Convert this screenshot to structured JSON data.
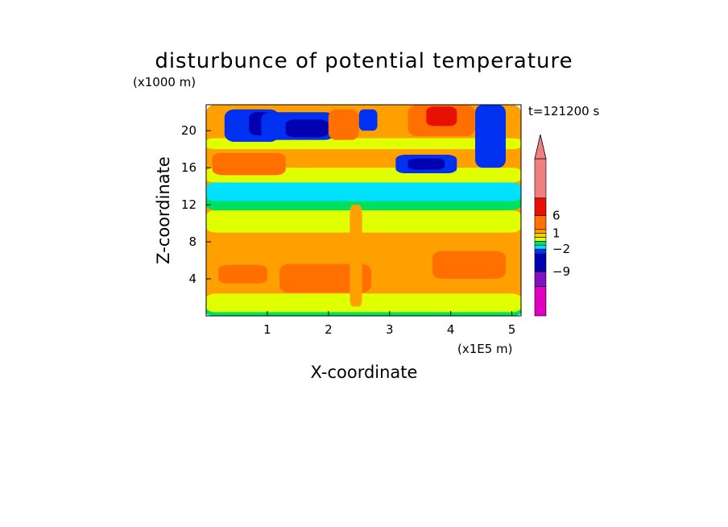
{
  "chart_data": {
    "type": "heatmap",
    "title": "disturbunce of potential temperature",
    "time_label": "t=121200 s",
    "xlabel": "X-coordinate",
    "ylabel": "Z-coordinate",
    "x_unit": "(x1E5 m)",
    "y_unit": "(x1000 m)",
    "x_ticks": [
      "1",
      "2",
      "3",
      "4",
      "5"
    ],
    "y_ticks": [
      "4",
      "8",
      "12",
      "16",
      "20"
    ],
    "xlim": [
      0,
      5.15
    ],
    "ylim": [
      0,
      22.8
    ],
    "colorbar": {
      "colors": [
        "#e000c0",
        "#8010c0",
        "#0000b0",
        "#0030f0",
        "#00e0ff",
        "#00e060",
        "#e0ff00",
        "#ffd000",
        "#ffa000",
        "#ff7000",
        "#e81000",
        "#f08080"
      ],
      "labels": [
        "-9",
        "-2",
        "1",
        "6"
      ]
    },
    "regions": [
      {
        "level": 8,
        "x": [
          0.0,
          5.15
        ],
        "z": [
          0,
          22.8
        ]
      },
      {
        "level": 5,
        "x": [
          0.0,
          5.15
        ],
        "z": [
          0,
          1.2
        ]
      },
      {
        "level": 6,
        "x": [
          0.0,
          5.15
        ],
        "z": [
          9.0,
          11.4
        ]
      },
      {
        "level": 6,
        "x": [
          0.0,
          5.15
        ],
        "z": [
          0.4,
          2.4
        ]
      },
      {
        "level": 9,
        "x": [
          1.2,
          2.7
        ],
        "z": [
          2.5,
          5.6
        ]
      },
      {
        "level": 9,
        "x": [
          3.7,
          4.9
        ],
        "z": [
          4.0,
          7.0
        ]
      },
      {
        "level": 9,
        "x": [
          0.2,
          1.0
        ],
        "z": [
          3.5,
          5.5
        ]
      },
      {
        "level": 5,
        "x": [
          0.0,
          5.15
        ],
        "z": [
          11.4,
          13.6
        ]
      },
      {
        "level": 4,
        "x": [
          0.0,
          5.15
        ],
        "z": [
          12.4,
          14.4
        ]
      },
      {
        "level": 6,
        "x": [
          0.0,
          5.15
        ],
        "z": [
          14.4,
          16.0
        ]
      },
      {
        "level": 8,
        "x": [
          0.0,
          5.15
        ],
        "z": [
          16.0,
          18.0
        ]
      },
      {
        "level": 9,
        "x": [
          0.1,
          1.3
        ],
        "z": [
          15.2,
          17.6
        ]
      },
      {
        "level": 6,
        "x": [
          0.0,
          5.15
        ],
        "z": [
          18.0,
          19.2
        ]
      },
      {
        "level": 8,
        "x": [
          0.0,
          5.15
        ],
        "z": [
          19.2,
          22.8
        ]
      },
      {
        "level": 3,
        "x": [
          0.3,
          1.2
        ],
        "z": [
          18.8,
          22.3
        ]
      },
      {
        "level": 2,
        "x": [
          0.7,
          1.2
        ],
        "z": [
          19.5,
          22.0
        ]
      },
      {
        "level": 3,
        "x": [
          0.9,
          2.1
        ],
        "z": [
          19.0,
          22.0
        ]
      },
      {
        "level": 2,
        "x": [
          1.3,
          2.0
        ],
        "z": [
          19.3,
          21.2
        ]
      },
      {
        "level": 9,
        "x": [
          2.0,
          2.5
        ],
        "z": [
          19.0,
          22.3
        ]
      },
      {
        "level": 3,
        "x": [
          2.5,
          2.8
        ],
        "z": [
          20.0,
          22.3
        ]
      },
      {
        "level": 9,
        "x": [
          3.3,
          4.4
        ],
        "z": [
          19.4,
          22.8
        ]
      },
      {
        "level": 10,
        "x": [
          3.6,
          4.1
        ],
        "z": [
          20.5,
          22.6
        ]
      },
      {
        "level": 3,
        "x": [
          3.1,
          4.1
        ],
        "z": [
          15.4,
          17.4
        ]
      },
      {
        "level": 2,
        "x": [
          3.3,
          3.9
        ],
        "z": [
          15.8,
          17.0
        ]
      },
      {
        "level": 3,
        "x": [
          4.4,
          4.9
        ],
        "z": [
          16.0,
          22.8
        ]
      },
      {
        "level": 8,
        "x": [
          2.35,
          2.55
        ],
        "z": [
          1.0,
          12.0
        ]
      }
    ]
  }
}
